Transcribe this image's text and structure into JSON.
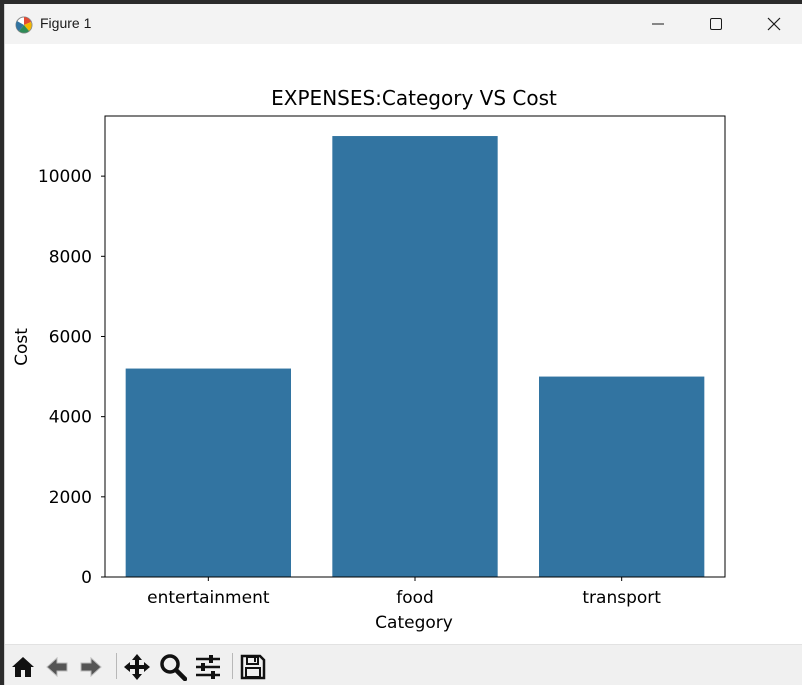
{
  "window": {
    "title": "Figure 1",
    "controls": {
      "minimize": "minimize-icon",
      "maximize": "maximize-icon",
      "close": "close-icon"
    }
  },
  "toolbar": {
    "buttons": [
      {
        "name": "home",
        "icon": "home-icon"
      },
      {
        "name": "back",
        "icon": "arrow-left-icon"
      },
      {
        "name": "forward",
        "icon": "arrow-right-icon"
      },
      {
        "name": "pan",
        "icon": "move-icon"
      },
      {
        "name": "zoom",
        "icon": "magnifier-icon"
      },
      {
        "name": "configure-subplots",
        "icon": "sliders-icon"
      },
      {
        "name": "save",
        "icon": "floppy-disk-icon"
      }
    ]
  },
  "chart_data": {
    "type": "bar",
    "title": "EXPENSES:Category VS Cost",
    "xlabel": "Category",
    "ylabel": "Cost",
    "categories": [
      "entertainment",
      "food",
      "transport"
    ],
    "values": [
      5200,
      11000,
      5000
    ],
    "ylim": [
      0,
      11500
    ],
    "yticks": [
      "0",
      "2000",
      "4000",
      "6000",
      "8000",
      "10000"
    ],
    "grid": false,
    "bar_color": "#3274a1"
  }
}
